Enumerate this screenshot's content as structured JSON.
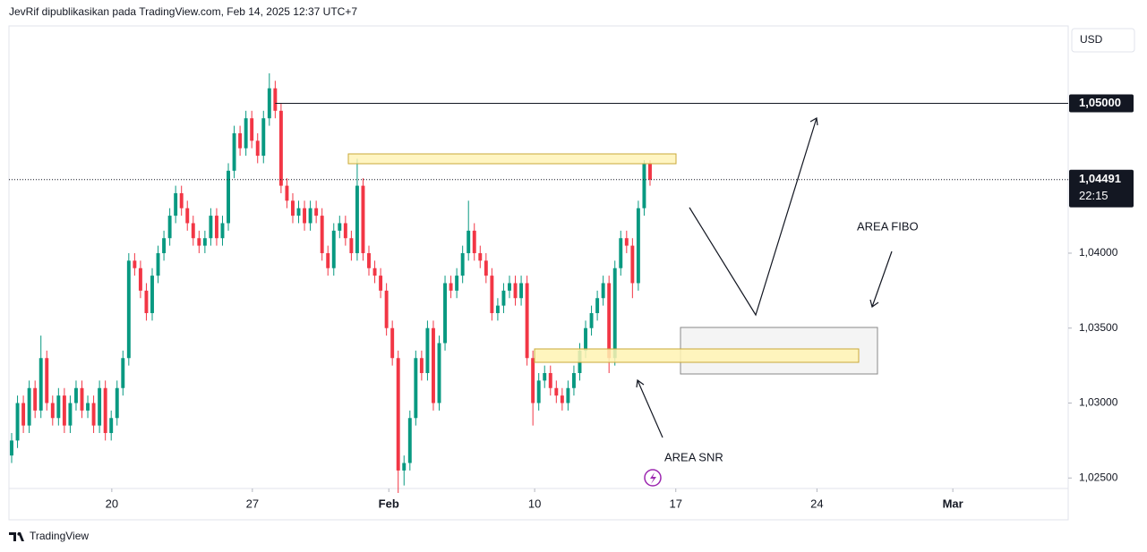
{
  "header": "JevRif dipublikasikan pada TradingView.com, Feb 14, 2025 12:37 UTC+7",
  "footer": "TradingView",
  "chart_data": {
    "type": "candlestick",
    "currency": "USD",
    "up_color": "#089981",
    "down_color": "#f23645",
    "ylim": [
      1.0243,
      1.0551
    ],
    "yticks": [
      {
        "value": 1.025,
        "label": "1,02500"
      },
      {
        "value": 1.03,
        "label": "1,03000"
      },
      {
        "value": 1.035,
        "label": "1,03500"
      },
      {
        "value": 1.04,
        "label": "1,04000"
      }
    ],
    "xlim": [
      -0.46,
      180.4
    ],
    "xticks": [
      {
        "value": 17.1,
        "label": "20"
      },
      {
        "value": 41.1,
        "label": "27"
      },
      {
        "value": 64.4,
        "label": "Feb"
      },
      {
        "value": 89.3,
        "label": "10"
      },
      {
        "value": 113.4,
        "label": "17"
      },
      {
        "value": 137.5,
        "label": "24"
      },
      {
        "value": 160.7,
        "label": "Mar"
      }
    ],
    "hline": {
      "value": 1.05,
      "label": "1,05000"
    },
    "last_price": {
      "value": 1.04491,
      "label": "1,04491"
    },
    "countdown": "22:15",
    "annotations": [
      "AREA FIBO",
      "AREA SNR"
    ],
    "open": [
      1.0265,
      1.0275,
      1.03,
      1.0285,
      1.031,
      1.0295,
      1.033,
      1.03,
      1.029,
      1.0305,
      1.0285,
      1.03,
      1.031,
      1.0295,
      1.03,
      1.0285,
      1.031,
      1.028,
      1.029,
      1.031,
      1.033,
      1.0395,
      1.039,
      1.0375,
      1.036,
      1.0385,
      1.04,
      1.041,
      1.0425,
      1.044,
      1.043,
      1.042,
      1.041,
      1.0405,
      1.041,
      1.0425,
      1.041,
      1.042,
      1.0455,
      1.048,
      1.047,
      1.049,
      1.0475,
      1.0465,
      1.049,
      1.051,
      1.0495,
      1.0445,
      1.0435,
      1.0425,
      1.043,
      1.042,
      1.043,
      1.0425,
      1.04,
      1.039,
      1.0415,
      1.042,
      1.041,
      1.04,
      1.0445,
      1.04,
      1.039,
      1.0385,
      1.0375,
      1.035,
      1.033,
      1.0255,
      1.026,
      1.029,
      1.033,
      1.032,
      1.035,
      1.03,
      1.034,
      1.038,
      1.0375,
      1.0385,
      1.04,
      1.0415,
      1.04,
      1.0395,
      1.0385,
      1.036,
      1.0365,
      1.0375,
      1.038,
      1.037,
      1.038,
      1.033,
      1.03,
      1.0315,
      1.032,
      1.031,
      1.0305,
      1.03,
      1.031,
      1.032,
      1.0335,
      1.035,
      1.036,
      1.037,
      1.038,
      1.033,
      1.039,
      1.041,
      1.0405,
      1.038,
      1.043,
      1.046
    ],
    "high": [
      1.028,
      1.0305,
      1.0305,
      1.0315,
      1.0315,
      1.0345,
      1.0335,
      1.0305,
      1.031,
      1.031,
      1.0305,
      1.0315,
      1.0315,
      1.0305,
      1.0305,
      1.0315,
      1.0315,
      1.0295,
      1.0315,
      1.0335,
      1.04,
      1.04,
      1.0395,
      1.038,
      1.039,
      1.0405,
      1.0415,
      1.043,
      1.0445,
      1.0445,
      1.0435,
      1.0425,
      1.0415,
      1.0415,
      1.043,
      1.043,
      1.0425,
      1.046,
      1.0485,
      1.0485,
      1.0495,
      1.0495,
      1.048,
      1.0495,
      1.052,
      1.0515,
      1.05,
      1.045,
      1.044,
      1.0435,
      1.0435,
      1.0435,
      1.0435,
      1.043,
      1.0405,
      1.042,
      1.0425,
      1.0425,
      1.0415,
      1.0463,
      1.045,
      1.0405,
      1.0395,
      1.039,
      1.038,
      1.0355,
      1.0335,
      1.0265,
      1.0295,
      1.0335,
      1.0335,
      1.0355,
      1.0355,
      1.0345,
      1.0385,
      1.0385,
      1.039,
      1.0405,
      1.0435,
      1.042,
      1.0405,
      1.04,
      1.039,
      1.037,
      1.038,
      1.0385,
      1.0385,
      1.0385,
      1.0385,
      1.0335,
      1.032,
      1.0325,
      1.0325,
      1.0315,
      1.031,
      1.0315,
      1.0325,
      1.034,
      1.0355,
      1.0365,
      1.0375,
      1.0385,
      1.0385,
      1.0395,
      1.0415,
      1.0415,
      1.041,
      1.0435,
      1.0462,
      1.0462
    ],
    "low": [
      1.026,
      1.027,
      1.028,
      1.028,
      1.029,
      1.029,
      1.0295,
      1.0285,
      1.0285,
      1.028,
      1.028,
      1.0295,
      1.029,
      1.029,
      1.028,
      1.028,
      1.0275,
      1.0275,
      1.0285,
      1.0305,
      1.0325,
      1.0385,
      1.037,
      1.0355,
      1.0355,
      1.038,
      1.0395,
      1.0405,
      1.042,
      1.0425,
      1.0415,
      1.0405,
      1.04,
      1.04,
      1.0405,
      1.0405,
      1.0405,
      1.0415,
      1.045,
      1.0465,
      1.0465,
      1.047,
      1.046,
      1.046,
      1.0485,
      1.049,
      1.044,
      1.043,
      1.042,
      1.042,
      1.0415,
      1.0415,
      1.042,
      1.0395,
      1.0385,
      1.0385,
      1.041,
      1.0405,
      1.0395,
      1.0395,
      1.0395,
      1.0385,
      1.038,
      1.037,
      1.0345,
      1.0325,
      1.024,
      1.0245,
      1.0255,
      1.0285,
      1.0315,
      1.0315,
      1.0295,
      1.0295,
      1.0335,
      1.037,
      1.037,
      1.038,
      1.0395,
      1.0395,
      1.039,
      1.038,
      1.0355,
      1.0355,
      1.036,
      1.037,
      1.0365,
      1.0365,
      1.0325,
      1.0285,
      1.0295,
      1.031,
      1.0305,
      1.03,
      1.0295,
      1.0295,
      1.0305,
      1.0315,
      1.033,
      1.0345,
      1.0355,
      1.0365,
      1.032,
      1.0325,
      1.0385,
      1.04,
      1.037,
      1.0375,
      1.0425,
      1.0445
    ],
    "close": [
      1.0275,
      1.03,
      1.0285,
      1.031,
      1.0295,
      1.033,
      1.03,
      1.029,
      1.0305,
      1.0285,
      1.03,
      1.031,
      1.0295,
      1.03,
      1.0285,
      1.031,
      1.028,
      1.029,
      1.031,
      1.033,
      1.0395,
      1.039,
      1.0375,
      1.036,
      1.0385,
      1.04,
      1.041,
      1.0425,
      1.044,
      1.043,
      1.042,
      1.041,
      1.0405,
      1.041,
      1.0425,
      1.041,
      1.042,
      1.0455,
      1.048,
      1.047,
      1.049,
      1.0475,
      1.0465,
      1.049,
      1.051,
      1.0495,
      1.0445,
      1.0435,
      1.0425,
      1.043,
      1.042,
      1.043,
      1.0425,
      1.04,
      1.039,
      1.0415,
      1.042,
      1.041,
      1.04,
      1.0445,
      1.04,
      1.039,
      1.0385,
      1.0375,
      1.035,
      1.033,
      1.0255,
      1.026,
      1.029,
      1.033,
      1.032,
      1.035,
      1.03,
      1.034,
      1.038,
      1.0375,
      1.0385,
      1.04,
      1.0415,
      1.04,
      1.0395,
      1.0385,
      1.036,
      1.0365,
      1.0375,
      1.038,
      1.037,
      1.038,
      1.033,
      1.03,
      1.0315,
      1.032,
      1.031,
      1.0305,
      1.03,
      1.031,
      1.032,
      1.0335,
      1.035,
      1.036,
      1.037,
      1.038,
      1.033,
      1.039,
      1.041,
      1.0405,
      1.038,
      1.043,
      1.046,
      1.0449
    ]
  }
}
